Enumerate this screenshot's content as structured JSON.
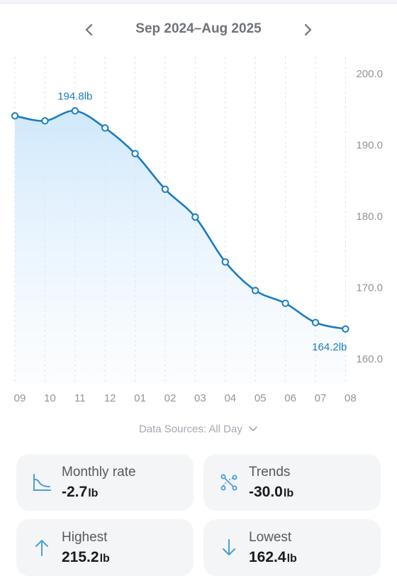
{
  "header": {
    "period": "Sep 2024–Aug 2025",
    "prev_icon": "chevron-left-icon",
    "next_icon": "chevron-right-icon"
  },
  "chart_data": {
    "type": "area",
    "x": [
      "09",
      "10",
      "11",
      "12",
      "01",
      "02",
      "03",
      "04",
      "05",
      "06",
      "07",
      "08"
    ],
    "values": [
      194.1,
      193.4,
      194.8,
      192.4,
      188.8,
      183.8,
      179.9,
      173.6,
      169.6,
      167.8,
      165.1,
      164.2
    ],
    "y_ticks": [
      "200.0",
      "190.0",
      "180.0",
      "170.0",
      "160.0"
    ],
    "ylim": [
      155,
      200
    ],
    "annotations": [
      {
        "x": "11",
        "label": "194.8lb"
      },
      {
        "x": "08",
        "label": "164.2lb"
      }
    ],
    "grid": "vertical-dashed",
    "y_axis_side": "right",
    "line_color": "#1a7cc1",
    "fill_color": "#cfe8fb"
  },
  "footer": {
    "data_sources": "Data Sources: All Day"
  },
  "stats": {
    "monthly_rate": {
      "label": "Monthly rate",
      "value": "-2.7",
      "unit": "lb",
      "icon": "area-chart-icon"
    },
    "trends": {
      "label": "Trends",
      "value": "-30.0",
      "unit": "lb",
      "icon": "trend-icon"
    },
    "highest": {
      "label": "Highest",
      "value": "215.2",
      "unit": "lb",
      "icon": "arrow-up-icon"
    },
    "lowest": {
      "label": "Lowest",
      "value": "162.4",
      "unit": "lb",
      "icon": "arrow-down-icon"
    }
  },
  "colors": {
    "accent": "#1a7cc1",
    "card_bg": "#f4f5f7",
    "icon": "#4a9fd8"
  }
}
